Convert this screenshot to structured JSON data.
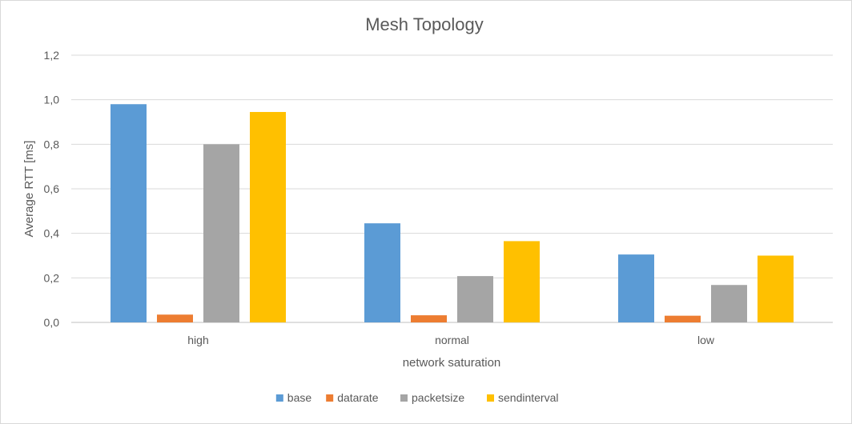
{
  "chart_data": {
    "type": "bar",
    "title": "Mesh Topology",
    "xlabel": "network saturation",
    "ylabel": "Average RTT [ms]",
    "categories": [
      "high",
      "normal",
      "low"
    ],
    "yticks": [
      "0,0",
      "0,2",
      "0,4",
      "0,6",
      "0,8",
      "1,0",
      "1,2"
    ],
    "ylim": [
      0,
      1.2
    ],
    "grid": true,
    "legend_position": "bottom",
    "series": [
      {
        "name": "base",
        "color": "#5b9bd5",
        "values": [
          0.98,
          0.445,
          0.305
        ]
      },
      {
        "name": "datarate",
        "color": "#ed7d31",
        "values": [
          0.035,
          0.032,
          0.03
        ]
      },
      {
        "name": "packetsize",
        "color": "#a5a5a5",
        "values": [
          0.8,
          0.208,
          0.168
        ]
      },
      {
        "name": "sendinterval",
        "color": "#ffc000",
        "values": [
          0.945,
          0.365,
          0.3
        ]
      }
    ]
  }
}
